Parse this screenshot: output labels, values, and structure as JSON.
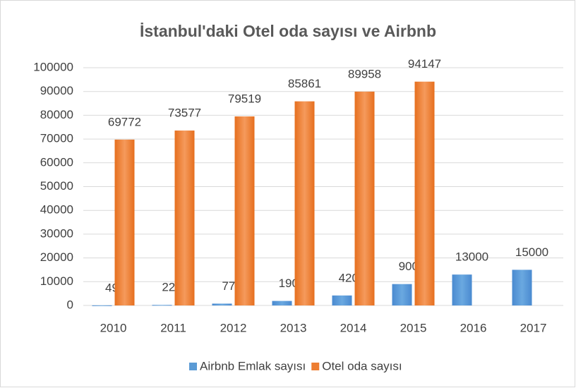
{
  "chart_data": {
    "type": "bar",
    "title": "İstanbul'daki Otel oda sayısı ve Airbnb",
    "categories": [
      "2010",
      "2011",
      "2012",
      "2013",
      "2014",
      "2015",
      "2016",
      "2017"
    ],
    "series": [
      {
        "name": "Airbnb Emlak sayısı",
        "color": "#5b9bd5",
        "values": [
          49,
          222,
          770,
          1900,
          4200,
          9000,
          13000,
          15000
        ]
      },
      {
        "name": "Otel oda sayısı",
        "color": "#ed7d31",
        "values": [
          69772,
          73577,
          79519,
          85861,
          89958,
          94147,
          null,
          null
        ]
      }
    ],
    "ylim": [
      0,
      100000
    ],
    "yticks": [
      0,
      10000,
      20000,
      30000,
      40000,
      50000,
      60000,
      70000,
      80000,
      90000,
      100000
    ],
    "grid": true,
    "legend": "bottom"
  }
}
